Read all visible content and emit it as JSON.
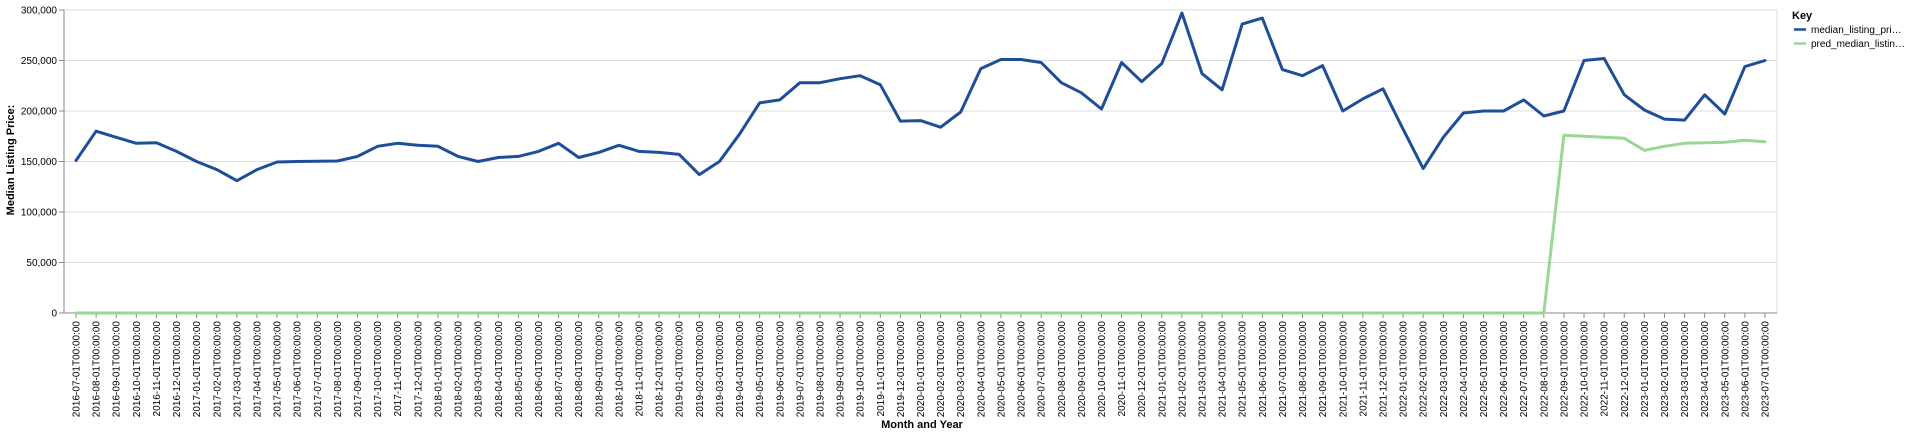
{
  "chart_data": {
    "type": "line",
    "xlabel": "Month and Year",
    "ylabel": "Median Listing Price:",
    "ylim": [
      0,
      300000
    ],
    "yticks": [
      "0",
      "50,000",
      "100,000",
      "150,000",
      "200,000",
      "250,000",
      "300,000"
    ],
    "ytick_values": [
      0,
      50000,
      100000,
      150000,
      200000,
      250000,
      300000
    ],
    "grid": true,
    "legend_position": "right",
    "legend_title": "Key",
    "categories": [
      "2016-07-01T00:00:00",
      "2016-08-01T00:00:00",
      "2016-09-01T00:00:00",
      "2016-10-01T00:00:00",
      "2016-11-01T00:00:00",
      "2016-12-01T00:00:00",
      "2017-01-01T00:00:00",
      "2017-02-01T00:00:00",
      "2017-03-01T00:00:00",
      "2017-04-01T00:00:00",
      "2017-05-01T00:00:00",
      "2017-06-01T00:00:00",
      "2017-07-01T00:00:00",
      "2017-08-01T00:00:00",
      "2017-09-01T00:00:00",
      "2017-10-01T00:00:00",
      "2017-11-01T00:00:00",
      "2017-12-01T00:00:00",
      "2018-01-01T00:00:00",
      "2018-02-01T00:00:00",
      "2018-03-01T00:00:00",
      "2018-04-01T00:00:00",
      "2018-05-01T00:00:00",
      "2018-06-01T00:00:00",
      "2018-07-01T00:00:00",
      "2018-08-01T00:00:00",
      "2018-09-01T00:00:00",
      "2018-10-01T00:00:00",
      "2018-11-01T00:00:00",
      "2018-12-01T00:00:00",
      "2019-01-01T00:00:00",
      "2019-02-01T00:00:00",
      "2019-03-01T00:00:00",
      "2019-04-01T00:00:00",
      "2019-05-01T00:00:00",
      "2019-06-01T00:00:00",
      "2019-07-01T00:00:00",
      "2019-08-01T00:00:00",
      "2019-09-01T00:00:00",
      "2019-10-01T00:00:00",
      "2019-11-01T00:00:00",
      "2019-12-01T00:00:00",
      "2020-01-01T00:00:00",
      "2020-02-01T00:00:00",
      "2020-03-01T00:00:00",
      "2020-04-01T00:00:00",
      "2020-05-01T00:00:00",
      "2020-06-01T00:00:00",
      "2020-07-01T00:00:00",
      "2020-08-01T00:00:00",
      "2020-09-01T00:00:00",
      "2020-10-01T00:00:00",
      "2020-11-01T00:00:00",
      "2020-12-01T00:00:00",
      "2021-01-01T00:00:00",
      "2021-02-01T00:00:00",
      "2021-03-01T00:00:00",
      "2021-04-01T00:00:00",
      "2021-05-01T00:00:00",
      "2021-06-01T00:00:00",
      "2021-07-01T00:00:00",
      "2021-08-01T00:00:00",
      "2021-09-01T00:00:00",
      "2021-10-01T00:00:00",
      "2021-11-01T00:00:00",
      "2021-12-01T00:00:00",
      "2022-01-01T00:00:00",
      "2022-02-01T00:00:00",
      "2022-03-01T00:00:00",
      "2022-04-01T00:00:00",
      "2022-05-01T00:00:00",
      "2022-06-01T00:00:00",
      "2022-07-01T00:00:00",
      "2022-08-01T00:00:00",
      "2022-09-01T00:00:00",
      "2022-10-01T00:00:00",
      "2022-11-01T00:00:00",
      "2022-12-01T00:00:00",
      "2023-01-01T00:00:00",
      "2023-02-01T00:00:00",
      "2023-03-01T00:00:00",
      "2023-04-01T00:00:00",
      "2023-05-01T00:00:00",
      "2023-06-01T00:00:00",
      "2023-07-01T00:00:00"
    ],
    "series": [
      {
        "name": "median_listing_pri…",
        "color": "#1f4e99",
        "values": [
          151000,
          180000,
          174000,
          168000,
          168500,
          160000,
          150000,
          142000,
          131000,
          142000,
          149500,
          150000,
          150200,
          150500,
          155000,
          165000,
          168000,
          166000,
          165000,
          155000,
          150000,
          154000,
          155000,
          160000,
          168000,
          154000,
          159000,
          166000,
          160000,
          159000,
          157000,
          137000,
          150000,
          177000,
          208000,
          211000,
          228000,
          228000,
          232000,
          235000,
          226000,
          190000,
          190500,
          184000,
          199000,
          242000,
          251000,
          251000,
          248000,
          228000,
          218000,
          202000,
          248000,
          229000,
          247000,
          297000,
          237000,
          221000,
          286000,
          292000,
          241000,
          235000,
          245000,
          200000,
          212000,
          222000,
          182000,
          143000,
          174000,
          198000,
          200000,
          200000,
          211000,
          195000,
          200000,
          250000,
          252000,
          216000,
          201000,
          192000,
          191000,
          216000,
          197000,
          244000,
          250000
        ]
      },
      {
        "name": "pred_median_listin…",
        "color": "#98d794",
        "values": [
          0,
          0,
          0,
          0,
          0,
          0,
          0,
          0,
          0,
          0,
          0,
          0,
          0,
          0,
          0,
          0,
          0,
          0,
          0,
          0,
          0,
          0,
          0,
          0,
          0,
          0,
          0,
          0,
          0,
          0,
          0,
          0,
          0,
          0,
          0,
          0,
          0,
          0,
          0,
          0,
          0,
          0,
          0,
          0,
          0,
          0,
          0,
          0,
          0,
          0,
          0,
          0,
          0,
          0,
          0,
          0,
          0,
          0,
          0,
          0,
          0,
          0,
          0,
          0,
          0,
          0,
          0,
          0,
          0,
          0,
          0,
          0,
          0,
          0,
          176000,
          175000,
          174000,
          173000,
          161000,
          165000,
          168000,
          168500,
          169000,
          171000,
          169500
        ]
      }
    ]
  }
}
